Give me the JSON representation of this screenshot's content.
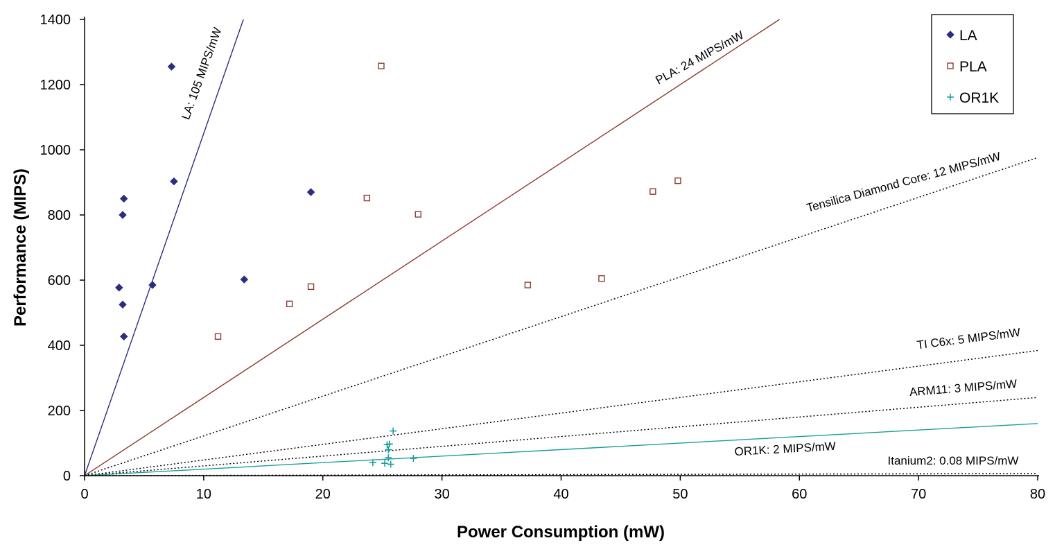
{
  "chart_data": {
    "type": "scatter",
    "title": "",
    "xlabel": "Power Consumption (mW)",
    "ylabel": "Performance (MIPS)",
    "xlim": [
      0,
      80
    ],
    "ylim": [
      0,
      1400
    ],
    "x_ticks": [
      0,
      10,
      20,
      30,
      40,
      50,
      60,
      70,
      80
    ],
    "y_ticks": [
      0,
      200,
      400,
      600,
      800,
      1000,
      1200,
      1400
    ],
    "grid": false,
    "legend": {
      "position": "top-right",
      "entries": [
        "LA",
        "PLA",
        "OR1K"
      ]
    },
    "series": [
      {
        "name": "LA",
        "marker": "filled-diamond",
        "color": "#2b2e7e",
        "points": [
          [
            2.9,
            577
          ],
          [
            3.2,
            525
          ],
          [
            3.3,
            427
          ],
          [
            3.2,
            800
          ],
          [
            3.3,
            850
          ],
          [
            5.7,
            585
          ],
          [
            7.3,
            1255
          ],
          [
            7.5,
            903
          ],
          [
            13.4,
            602
          ],
          [
            19.0,
            870
          ]
        ]
      },
      {
        "name": "PLA",
        "marker": "hollow-square",
        "color": "#8b3a2f",
        "points": [
          [
            11.2,
            427
          ],
          [
            17.2,
            527
          ],
          [
            19.0,
            580
          ],
          [
            23.7,
            852
          ],
          [
            24.9,
            1257
          ],
          [
            28.0,
            802
          ],
          [
            37.2,
            585
          ],
          [
            43.4,
            605
          ],
          [
            47.7,
            872
          ],
          [
            49.8,
            905
          ]
        ]
      },
      {
        "name": "OR1K",
        "marker": "plus",
        "color": "#1a9e9a",
        "points": [
          [
            24.2,
            40
          ],
          [
            25.2,
            38
          ],
          [
            25.4,
            95
          ],
          [
            25.5,
            80
          ],
          [
            25.6,
            97
          ],
          [
            25.5,
            55
          ],
          [
            25.7,
            35
          ],
          [
            25.9,
            137
          ],
          [
            27.6,
            53
          ]
        ]
      }
    ],
    "reference_lines": [
      {
        "label": "LA: 105 MIPS/mW",
        "slope": 105,
        "style": "solid",
        "color": "#2b2e7e"
      },
      {
        "label": "PLA: 24 MIPS/mW",
        "slope": 24,
        "style": "solid",
        "color": "#8b3a2f"
      },
      {
        "label": "Tensilica Diamond Core: 12 MIPS/mW",
        "slope": 12.2,
        "style": "dotted",
        "color": "#000000"
      },
      {
        "label": "TI C6x: 5 MIPS/mW",
        "slope": 4.8,
        "style": "dotted",
        "color": "#000000"
      },
      {
        "label": "ARM11: 3 MIPS/mW",
        "slope": 3.0,
        "style": "dotted",
        "color": "#000000"
      },
      {
        "label": "OR1K: 2 MIPS/mW",
        "slope": 2.0,
        "style": "solid",
        "color": "#1a9e9a"
      },
      {
        "label": "Itanium2: 0.08 MIPS/mW",
        "slope": 0.08,
        "style": "dotted",
        "color": "#000000"
      }
    ]
  }
}
